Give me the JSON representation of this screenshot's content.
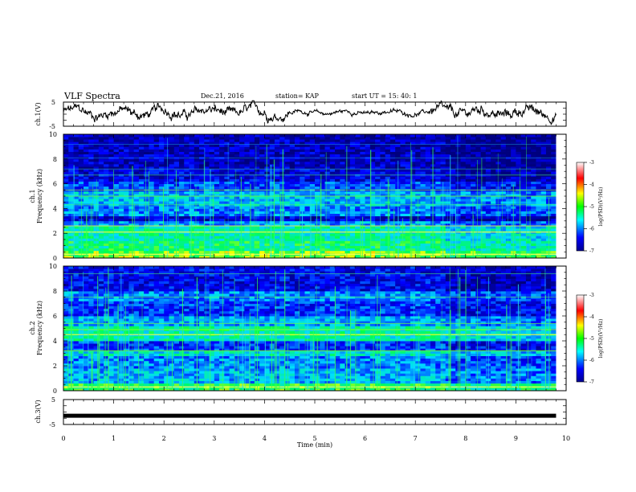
{
  "header": {
    "title": "VLF Spectra",
    "date": "Dec.21, 2016",
    "station": "station= KAP",
    "start": "start  UT =   15: 40: 1"
  },
  "chart_data": [
    {
      "type": "line",
      "name": "ch1-waveform",
      "ylabel": "ch.1(V)",
      "ylim": [
        -5,
        5
      ],
      "yticks": [
        "5",
        "-5"
      ],
      "xlim": [
        0,
        10
      ]
    },
    {
      "type": "heatmap",
      "name": "ch1-spectrogram",
      "ylabel_lines": [
        "ch.1",
        "Frequency (kHz)"
      ],
      "ylim": [
        0,
        10
      ],
      "yticks": [
        "0",
        "2",
        "4",
        "6",
        "8",
        "10"
      ],
      "xlim": [
        0,
        10
      ],
      "colorbar": {
        "label": "log(PSD)(V²/Hz)",
        "ticks": [
          "-3",
          "-4",
          "-5",
          "-6",
          "-7"
        ],
        "range": [
          -7,
          -3
        ]
      }
    },
    {
      "type": "heatmap",
      "name": "ch2-spectrogram",
      "ylabel_lines": [
        "ch.2",
        "Frequency (kHz)"
      ],
      "ylim": [
        0,
        10
      ],
      "yticks": [
        "0",
        "2",
        "4",
        "6",
        "8",
        "10"
      ],
      "xlim": [
        0,
        10
      ],
      "colorbar": {
        "label": "log(PSD)(V²/Hz)",
        "ticks": [
          "-3",
          "-4",
          "-5",
          "-6",
          "-7"
        ],
        "range": [
          -7,
          -3
        ]
      }
    },
    {
      "type": "line",
      "name": "ch3-waveform",
      "ylabel": "ch.3(V)",
      "ylim": [
        -5,
        5
      ],
      "yticks": [
        "5",
        "-5"
      ],
      "xlim": [
        0,
        10
      ],
      "approx_constant_value": -1.5
    }
  ],
  "xaxis": {
    "label": "Time (min)",
    "ticks": [
      "0",
      "1",
      "2",
      "3",
      "4",
      "5",
      "6",
      "7",
      "8",
      "9",
      "10"
    ]
  }
}
